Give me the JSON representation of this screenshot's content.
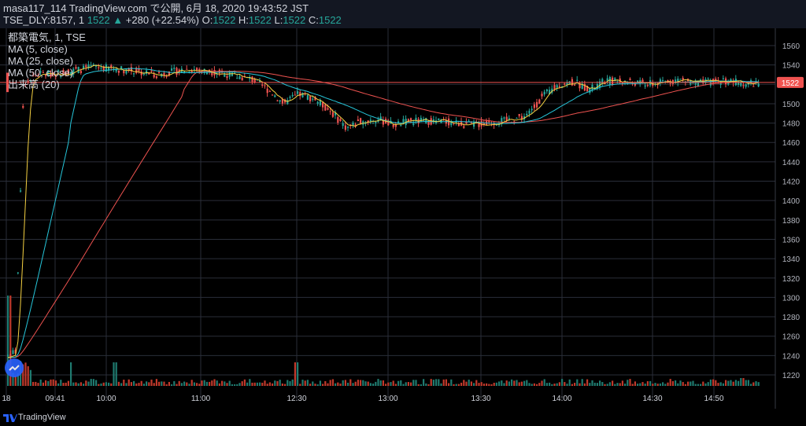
{
  "header": {
    "line1": "masa117_114 TradingView.com で公開, 6月 18, 2020 19:43:52 JST",
    "symbol": "TSE_DLY:8157, 1",
    "last": "1522",
    "change": "+280 (+22.54%)",
    "o_label": "O:",
    "o_value": "1522",
    "h_label": "H:",
    "h_value": "1522",
    "l_label": "L:",
    "l_value": "1522",
    "c_label": "C:",
    "c_value": "1522"
  },
  "legend": {
    "title": "都築電気, 1, TSE",
    "ma5": "MA (5, close)",
    "ma25": "MA (25, close)",
    "ma50": "MA (50, close)",
    "volume": "出来高 (20)"
  },
  "footer": {
    "brand": "TradingView"
  },
  "colors": {
    "up": "#26a69a",
    "down": "#ef5350",
    "ma5": "#f5d142",
    "ma25": "#26c6da",
    "ma50": "#ef5350",
    "grid": "#2a2e39",
    "background": "#000000"
  },
  "chart_data": {
    "type": "candlestick",
    "y_ticks": [
      1220,
      1240,
      1260,
      1280,
      1300,
      1320,
      1340,
      1360,
      1380,
      1400,
      1420,
      1440,
      1460,
      1480,
      1500,
      1520,
      1540,
      1560
    ],
    "ylim": [
      1210,
      1575
    ],
    "x_ticks": [
      "18",
      "09:41",
      "10:00",
      "11:00",
      "12:30",
      "13:00",
      "13:30",
      "14:00",
      "14:30",
      "14:50"
    ],
    "last_price_label": "1522",
    "ohlc_approx": [
      {
        "t": "09:00",
        "o": 1242,
        "h": 1300,
        "l": 1238,
        "c": 1240
      },
      {
        "t": "09:41",
        "o": 1520,
        "h": 1540,
        "l": 1515,
        "c": 1530
      },
      {
        "t": "10:00",
        "o": 1535,
        "h": 1545,
        "l": 1525,
        "c": 1538
      },
      {
        "t": "11:00",
        "o": 1535,
        "h": 1542,
        "l": 1528,
        "c": 1533
      },
      {
        "t": "12:30",
        "o": 1515,
        "h": 1520,
        "l": 1490,
        "c": 1500
      },
      {
        "t": "13:00",
        "o": 1470,
        "h": 1490,
        "l": 1462,
        "c": 1480
      },
      {
        "t": "13:30",
        "o": 1478,
        "h": 1486,
        "l": 1472,
        "c": 1480
      },
      {
        "t": "14:00",
        "o": 1500,
        "h": 1528,
        "l": 1495,
        "c": 1522
      },
      {
        "t": "14:30",
        "o": 1525,
        "h": 1530,
        "l": 1515,
        "c": 1524
      },
      {
        "t": "14:50",
        "o": 1522,
        "h": 1530,
        "l": 1512,
        "c": 1522
      }
    ]
  }
}
